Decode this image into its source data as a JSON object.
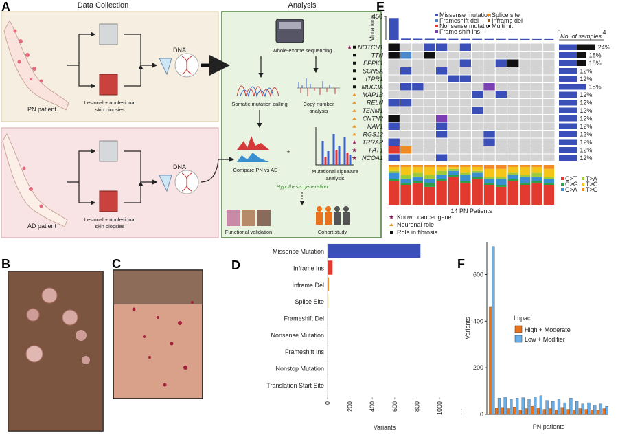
{
  "panels": {
    "A": {
      "letter": "A",
      "headers": [
        "Data Collection",
        "Analysis"
      ],
      "pn": {
        "patient": "PN patient",
        "biopsies": [
          "Lesional + nonlesional",
          "skin biopsies"
        ],
        "dna": "DNA"
      },
      "ad": {
        "patient": "AD patient",
        "biopsies": [
          "Lesional + nonlesional",
          "skin biopsies"
        ],
        "dna": "DNA"
      },
      "analysis": {
        "wes": "Whole-exome sequencing",
        "somatic": "Somatic mutation calling",
        "cna": [
          "Copy number",
          "analysis"
        ],
        "compare": "Compare PN vs AD",
        "plus": "+",
        "signature": [
          "Mutational signature",
          "analysis"
        ],
        "hypothesis": "Hypothesis generation",
        "functional": "Functional validation",
        "cohort": "Cohort study"
      }
    },
    "B": {
      "letter": "B"
    },
    "C": {
      "letter": "C"
    },
    "D": {
      "letter": "D"
    },
    "F": {
      "letter": "F"
    },
    "E": {
      "letter": "E",
      "mutation_legend": [
        {
          "name": "Missense mutation",
          "color": "#3a4fb8"
        },
        {
          "name": "Frameshift del",
          "color": "#4a86c8"
        },
        {
          "name": "Nonsense mutation",
          "color": "#e23a2e"
        },
        {
          "name": "Frame shift ins",
          "color": "#7b3fb3"
        },
        {
          "name": "Splice site",
          "color": "#f08a24"
        },
        {
          "name": "Inframe del",
          "color": "#8b5a2b"
        },
        {
          "name": "Multi hit",
          "color": "#111111"
        }
      ],
      "genes": [
        {
          "name": "NOTCH1",
          "pct": "24%",
          "markers": [
            "star",
            "square"
          ]
        },
        {
          "name": "TTN",
          "pct": "18%",
          "markers": [
            "square"
          ]
        },
        {
          "name": "EPPK1",
          "pct": "18%",
          "markers": [
            "square"
          ]
        },
        {
          "name": "SCN5A",
          "pct": "12%",
          "markers": [
            "square"
          ]
        },
        {
          "name": "ITPR1",
          "pct": "12%",
          "markers": [
            "square"
          ]
        },
        {
          "name": "MUC3A",
          "pct": "18%",
          "markers": [
            "square"
          ]
        },
        {
          "name": "MAP1B",
          "pct": "12%",
          "markers": [
            "triangle"
          ]
        },
        {
          "name": "RELN",
          "pct": "12%",
          "markers": [
            "triangle"
          ]
        },
        {
          "name": "TENM1",
          "pct": "12%",
          "markers": [
            "triangle"
          ]
        },
        {
          "name": "CNTN2",
          "pct": "12%",
          "markers": [
            "triangle"
          ]
        },
        {
          "name": "NAV1",
          "pct": "12%",
          "markers": [
            "triangle"
          ]
        },
        {
          "name": "RGS12",
          "pct": "12%",
          "markers": [
            "triangle"
          ]
        },
        {
          "name": "TRRAP",
          "pct": "12%",
          "markers": [
            "star"
          ]
        },
        {
          "name": "FAT1",
          "pct": "12%",
          "markers": [
            "star"
          ]
        },
        {
          "name": "NCOA1",
          "pct": "12%",
          "markers": [
            "star"
          ]
        }
      ],
      "samples_axis": {
        "title": "No. of samples",
        "ticks": [
          "0",
          "4"
        ]
      },
      "substitution_legend": [
        {
          "name": "C>T",
          "color": "#e23a2e"
        },
        {
          "name": "C>G",
          "color": "#2e9e4a"
        },
        {
          "name": "C>A",
          "color": "#3a8fd0"
        },
        {
          "name": "T>A",
          "color": "#9ecb3c"
        },
        {
          "name": "T>C",
          "color": "#f5c518"
        },
        {
          "name": "T>G",
          "color": "#f08a24"
        }
      ],
      "xlabel": "14 PN Patients",
      "role_legend": [
        {
          "name": "Known cancer gene",
          "marker": "star"
        },
        {
          "name": "Neuronal role",
          "marker": "triangle"
        },
        {
          "name": "Role in fibrosis",
          "marker": "square"
        }
      ]
    }
  },
  "chart_data": [
    {
      "type": "bar",
      "ylabel": "Mutations",
      "categories": [
        null,
        null,
        null,
        null,
        null,
        null,
        null,
        null,
        null,
        null,
        null,
        null,
        null,
        null
      ],
      "values": [
        420,
        22,
        20,
        20,
        19,
        18,
        18,
        18,
        17,
        17,
        16,
        16,
        15,
        15
      ],
      "color": "#3a4fb8",
      "ylim": [
        0,
        450
      ],
      "yticks": [
        450
      ]
    },
    {
      "type": "barh",
      "xlabel": "Variants",
      "categories": [
        "Missense Mutation",
        "Inframe Ins",
        "Inframe Del",
        "Splice Site",
        "Frameshift Del",
        "Nonsense Mutation",
        "Frameshift Ins",
        "Nonstop Mutation",
        "Translation Start Site"
      ],
      "values": [
        830,
        45,
        12,
        8,
        6,
        5,
        4,
        1,
        1
      ],
      "colors": [
        "#3a4fb8",
        "#e23a2e",
        "#f08a24",
        "#f5e04a",
        "#4a86c8",
        "#c2185b",
        "#9c7bd0",
        "#8b5a2b",
        "#555555"
      ],
      "xlim": [
        0,
        1000
      ],
      "xticks": [
        0,
        200,
        400,
        600,
        800,
        1000
      ]
    },
    {
      "type": "bar",
      "ylabel": "Variants",
      "xlabel": "PN patients",
      "legend_title": "Impact",
      "categories": [
        null,
        null,
        null,
        null,
        null,
        null,
        null,
        null,
        null,
        null,
        null,
        null,
        null,
        null,
        null,
        null,
        null,
        null,
        null,
        null
      ],
      "series": [
        {
          "name": "High + Moderate",
          "color": "#e8731c",
          "values": [
            460,
            28,
            30,
            25,
            32,
            20,
            25,
            35,
            28,
            22,
            25,
            20,
            30,
            22,
            18,
            25,
            22,
            20,
            18,
            25
          ]
        },
        {
          "name": "Low + Modifier",
          "color": "#6aaee8",
          "values": [
            720,
            70,
            75,
            65,
            70,
            72,
            65,
            75,
            80,
            60,
            55,
            65,
            50,
            70,
            55,
            45,
            50,
            40,
            45,
            35
          ]
        }
      ],
      "ylim": [
        0,
        740
      ],
      "yticks": [
        0,
        200,
        400,
        600
      ]
    }
  ]
}
